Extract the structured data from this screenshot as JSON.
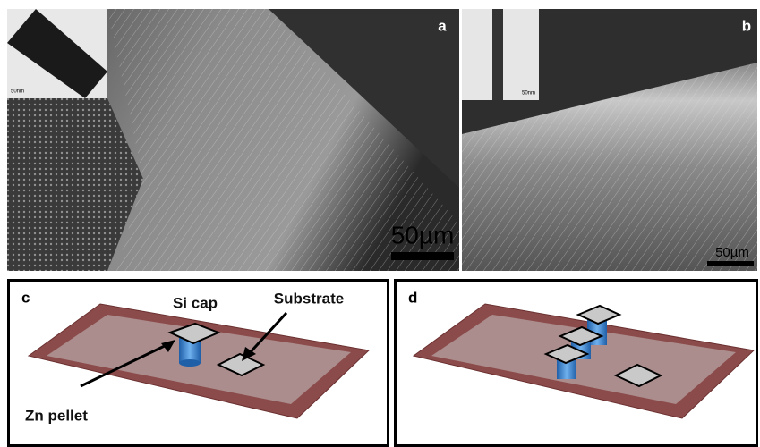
{
  "panels": [
    {
      "label": "a",
      "scale_bar": "50µm",
      "inset_scale": "50nm"
    },
    {
      "label": "b",
      "scale_bar": "50µm",
      "inset_scale": "50nm"
    },
    {
      "label": "c",
      "annotations": [
        "Si cap",
        "Substrate",
        "Zn pellet"
      ]
    },
    {
      "label": "d"
    }
  ]
}
